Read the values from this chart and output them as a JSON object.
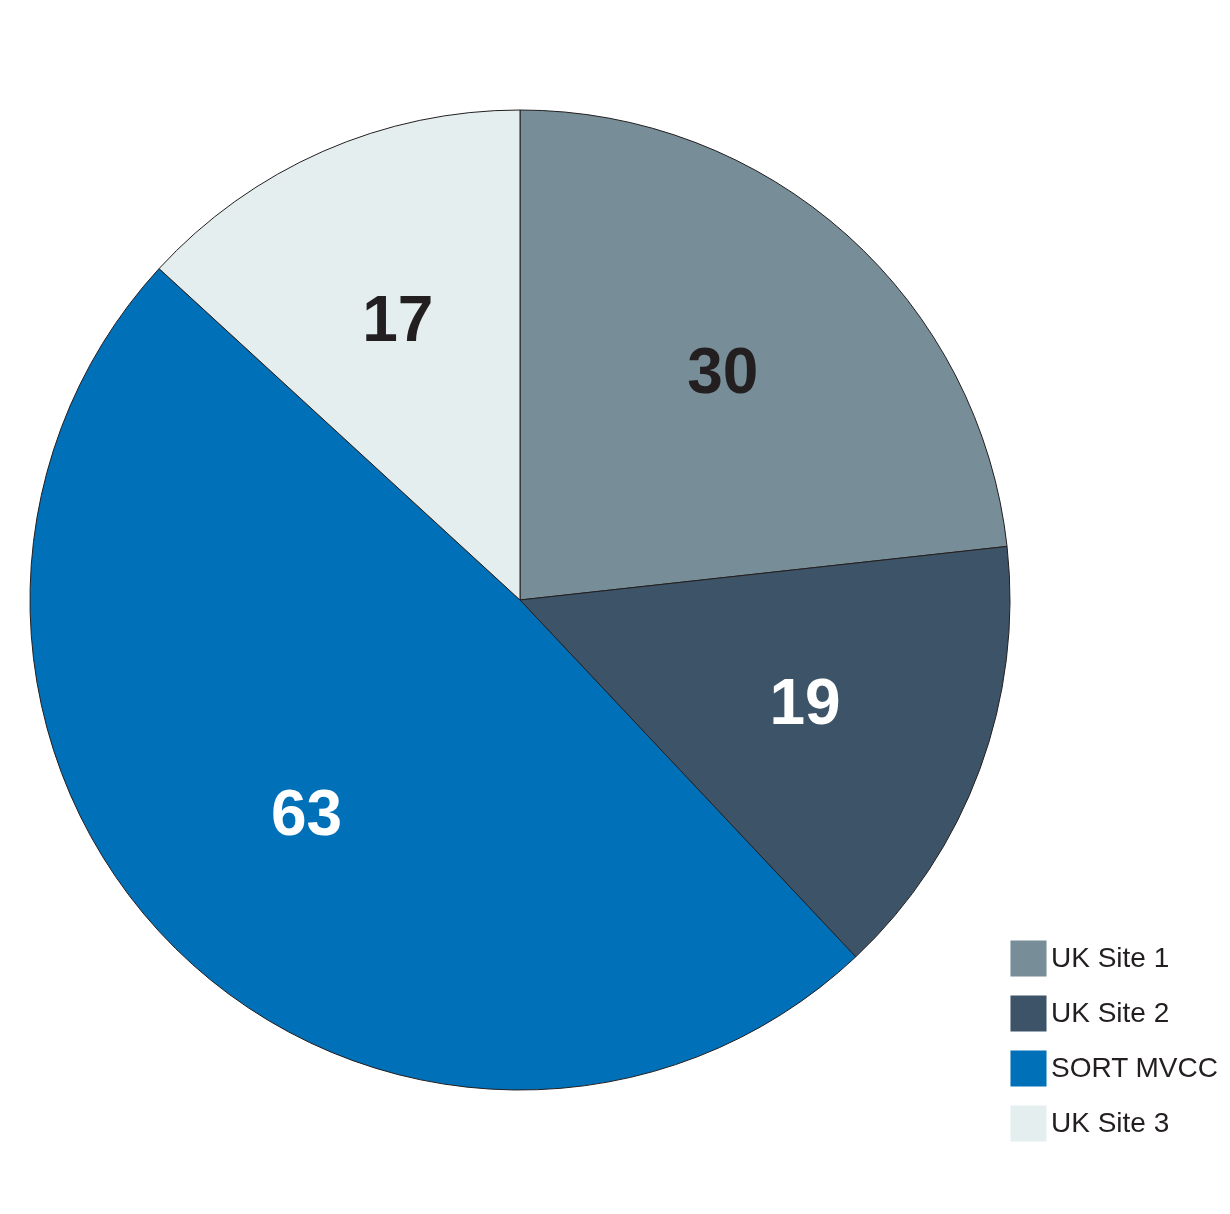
{
  "chart_data": {
    "type": "pie",
    "categories": [
      "UK Site 1",
      "UK Site 2",
      "SORT MVCC",
      "UK Site 3"
    ],
    "values": [
      30,
      19,
      63,
      17
    ],
    "colors": [
      "#778d97",
      "#3d5468",
      "#0070b9",
      "#e4eeef"
    ],
    "data_labels": true,
    "legend": "bottom right"
  }
}
